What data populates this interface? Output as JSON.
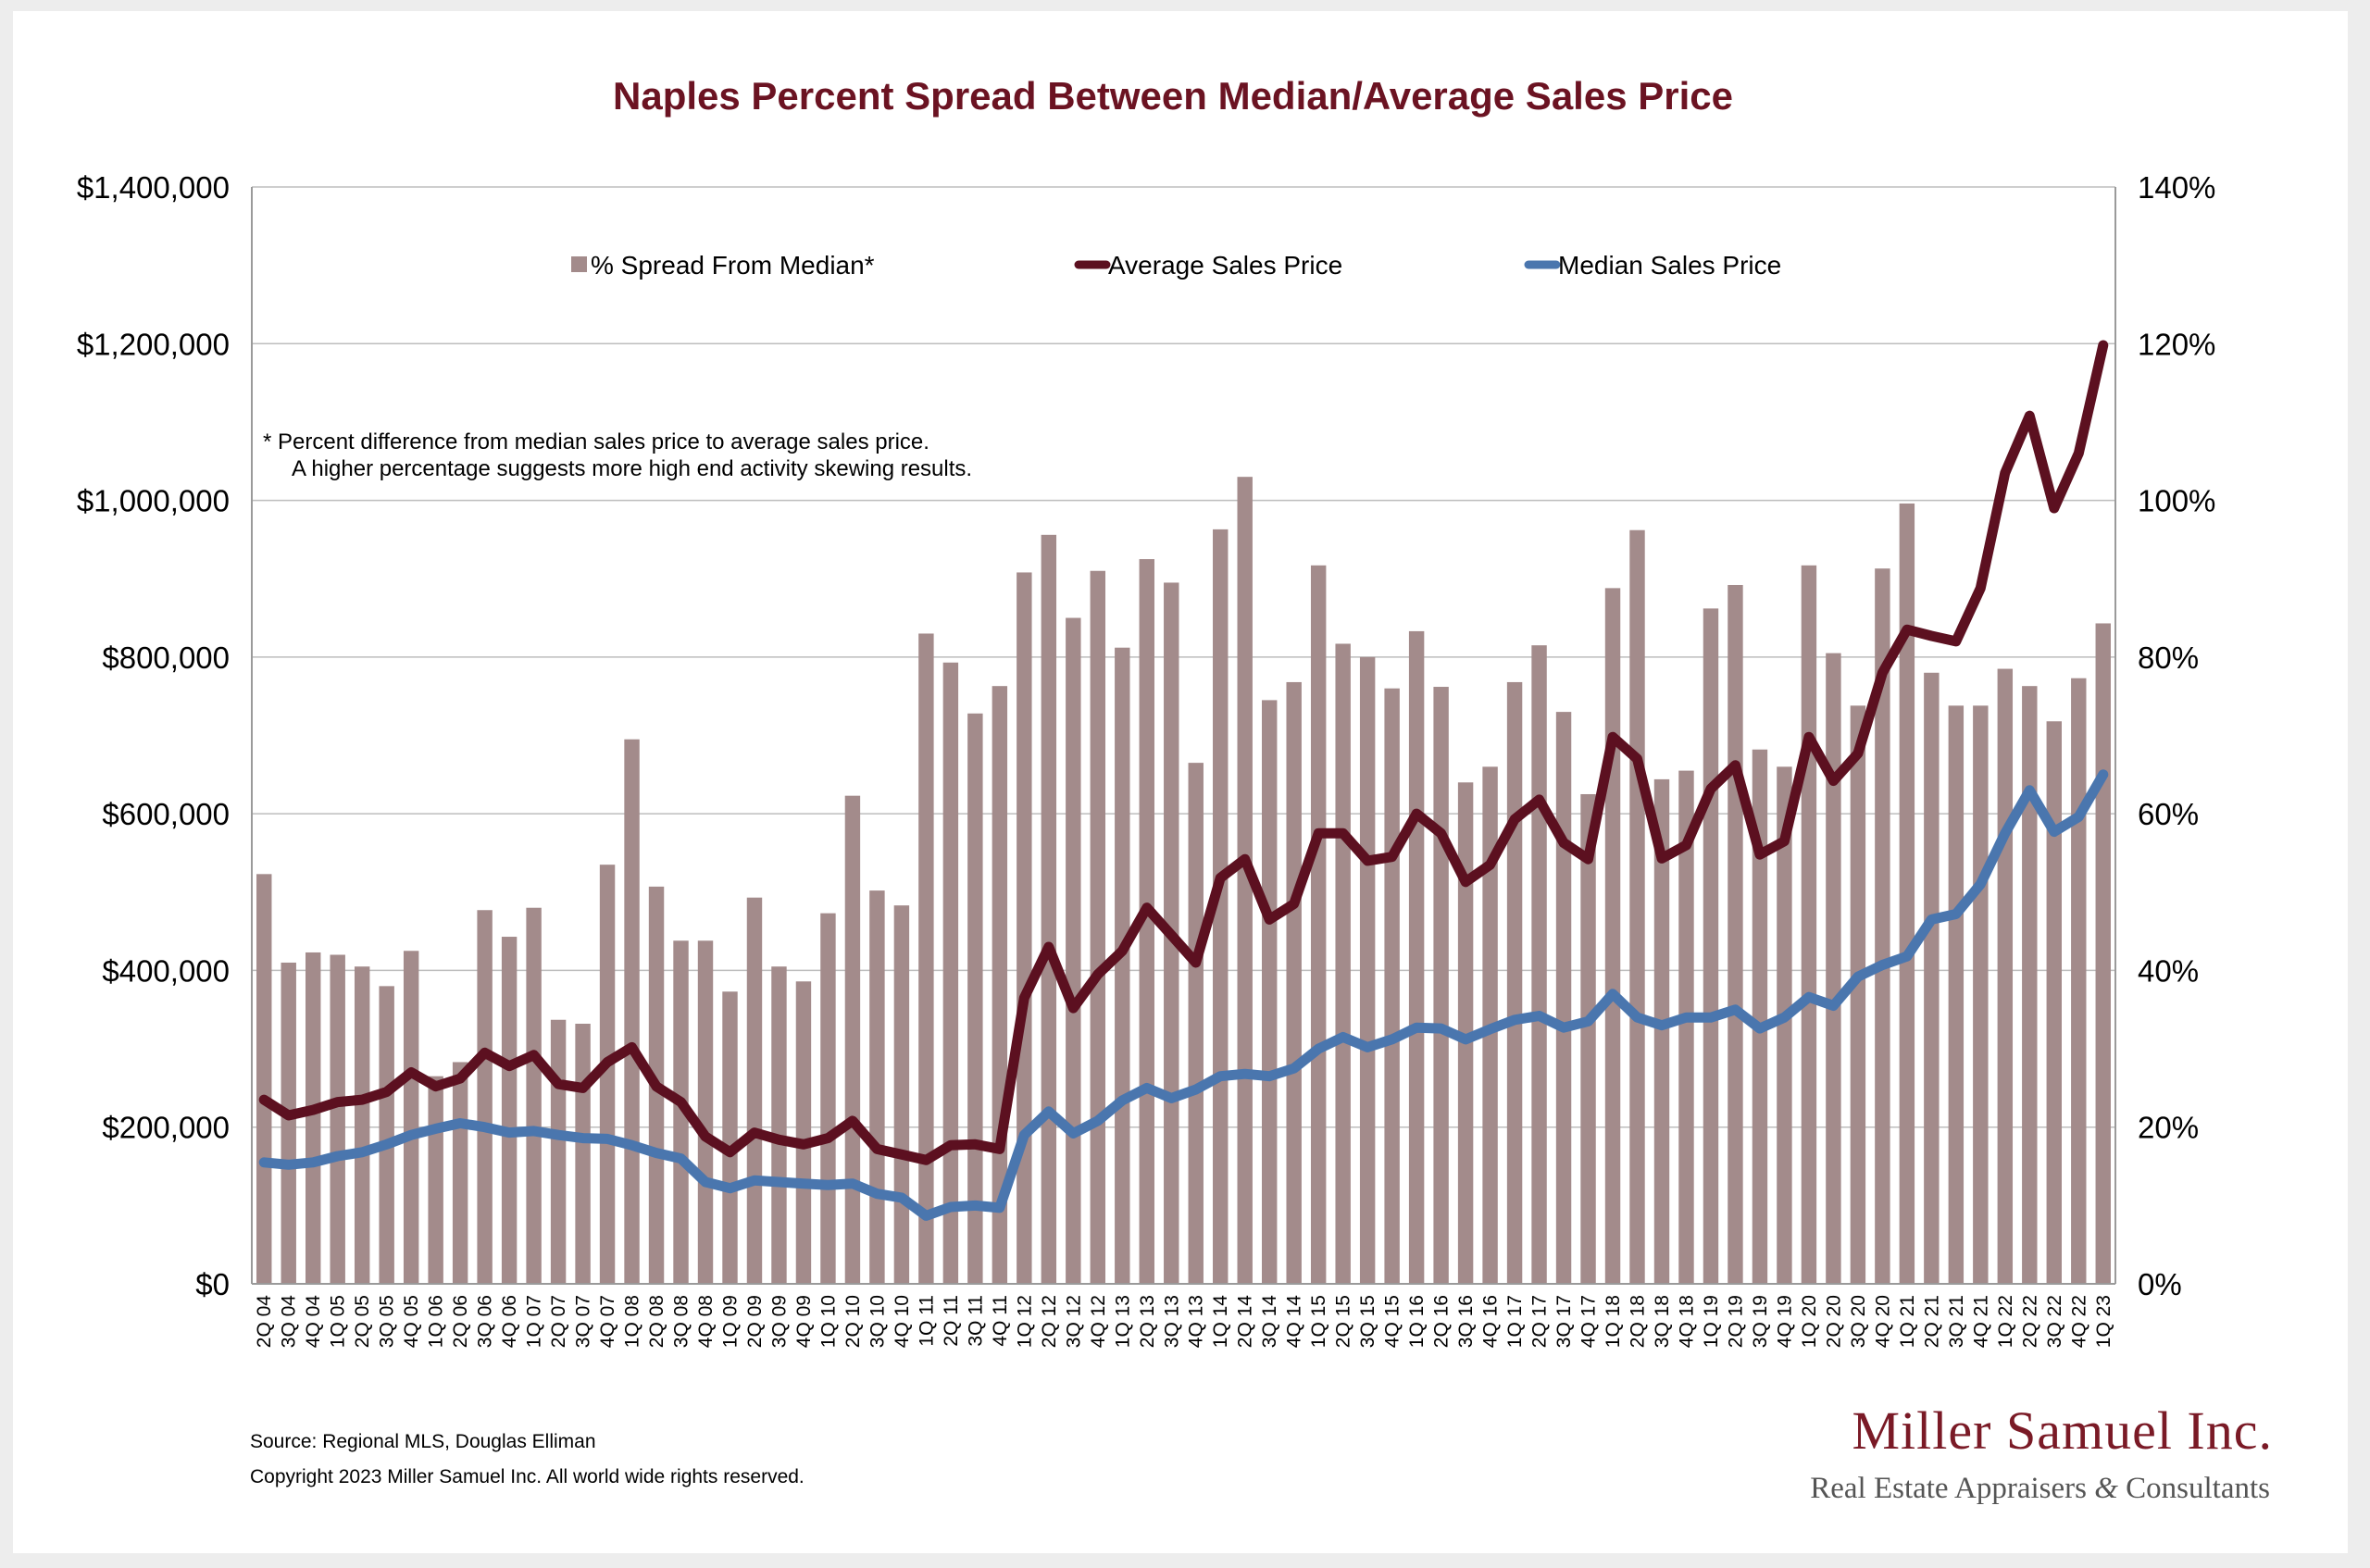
{
  "chart_data": {
    "type": "bar+line",
    "title": "Naples Percent Spread Between Median/Average Sales Price",
    "left_axis": {
      "ticks": [
        "$0",
        "$200,000",
        "$400,000",
        "$600,000",
        "$800,000",
        "$1,000,000",
        "$1,200,000",
        "$1,400,000"
      ],
      "range": [
        0,
        1400000
      ]
    },
    "right_axis": {
      "ticks": [
        "0%",
        "20%",
        "40%",
        "60%",
        "80%",
        "100%",
        "120%",
        "140%"
      ],
      "range": [
        0,
        140
      ]
    },
    "categories": [
      "2Q 04",
      "3Q 04",
      "4Q 04",
      "1Q 05",
      "2Q 05",
      "3Q 05",
      "4Q 05",
      "1Q 06",
      "2Q 06",
      "3Q 06",
      "4Q 06",
      "1Q 07",
      "2Q 07",
      "3Q 07",
      "4Q 07",
      "1Q 08",
      "2Q 08",
      "3Q 08",
      "4Q 08",
      "1Q 09",
      "2Q 09",
      "3Q 09",
      "4Q 09",
      "1Q 10",
      "2Q 10",
      "3Q 10",
      "4Q 10",
      "1Q 11",
      "2Q 11",
      "3Q 11",
      "4Q 11",
      "1Q 12",
      "2Q 12",
      "3Q 12",
      "4Q 12",
      "1Q 13",
      "2Q 13",
      "3Q 13",
      "4Q 13",
      "1Q 14",
      "2Q 14",
      "3Q 14",
      "4Q 14",
      "1Q 15",
      "2Q 15",
      "3Q 15",
      "4Q 15",
      "1Q 16",
      "2Q 16",
      "3Q 16",
      "4Q 16",
      "1Q 17",
      "2Q 17",
      "3Q 17",
      "4Q 17",
      "1Q 18",
      "2Q 18",
      "3Q 18",
      "4Q 18",
      "1Q 19",
      "2Q 19",
      "3Q 19",
      "4Q 19",
      "1Q 20",
      "2Q 20",
      "3Q 20",
      "4Q 20",
      "1Q 21",
      "2Q 21",
      "3Q 21",
      "4Q 21",
      "1Q 22",
      "2Q 22",
      "3Q 22",
      "4Q 22",
      "1Q 23"
    ],
    "series": [
      {
        "name": "% Spread From Median*",
        "kind": "bar",
        "axis": "right",
        "color": "#a38b8b",
        "values": [
          52.3,
          41,
          42.3,
          42,
          40.5,
          38,
          42.5,
          26.5,
          28.3,
          47.7,
          44.3,
          48,
          33.7,
          33.2,
          53.5,
          69.5,
          50.7,
          43.8,
          43.8,
          37.3,
          49.3,
          40.5,
          38.6,
          47.3,
          62.3,
          50.2,
          48.3,
          83,
          79.3,
          72.8,
          76.3,
          90.8,
          95.6,
          85,
          91,
          81.2,
          92.5,
          89.5,
          66.5,
          96.3,
          103,
          74.5,
          76.8,
          91.7,
          81.7,
          80,
          76,
          83.3,
          76.2,
          64,
          66,
          76.8,
          81.5,
          73,
          62.5,
          88.8,
          96.2,
          64.4,
          65.5,
          86.2,
          89.2,
          68.2,
          66,
          91.7,
          80.5,
          73.8,
          91.3,
          99.6,
          78,
          73.8,
          73.8,
          78.5,
          76.3,
          71.8,
          77.3,
          84.3
        ]
      },
      {
        "name": "Average Sales Price",
        "kind": "line",
        "axis": "left",
        "color": "#5c1020",
        "values": [
          235000,
          215000,
          222000,
          232000,
          235000,
          245000,
          270000,
          252000,
          262000,
          295000,
          278000,
          292000,
          255000,
          250000,
          283000,
          302000,
          252000,
          232000,
          188000,
          168000,
          193000,
          184000,
          178000,
          186000,
          208000,
          172000,
          165000,
          158000,
          177000,
          178000,
          172000,
          365000,
          430000,
          352000,
          395000,
          425000,
          480000,
          445000,
          410000,
          518000,
          542000,
          465000,
          485000,
          575000,
          575000,
          540000,
          545000,
          600000,
          575000,
          513000,
          535000,
          593000,
          618000,
          563000,
          542000,
          698000,
          670000,
          543000,
          560000,
          632000,
          662000,
          548000,
          565000,
          698000,
          642000,
          677000,
          780000,
          835000,
          827000,
          820000,
          888000,
          1035000,
          1108000,
          990000,
          1060000,
          1198000
        ]
      },
      {
        "name": "Median Sales Price",
        "kind": "line",
        "axis": "left",
        "color": "#4a76ae",
        "values": [
          155000,
          152000,
          155000,
          163000,
          168000,
          178000,
          190000,
          198000,
          205000,
          200000,
          193000,
          195000,
          190000,
          186000,
          185000,
          177000,
          167000,
          160000,
          130000,
          122000,
          132000,
          130000,
          128000,
          126000,
          128000,
          115000,
          110000,
          87000,
          98000,
          100000,
          97000,
          190000,
          220000,
          192000,
          208000,
          234000,
          250000,
          237000,
          248000,
          265000,
          268000,
          265000,
          275000,
          300000,
          315000,
          302000,
          312000,
          327000,
          326000,
          312000,
          325000,
          337000,
          342000,
          327000,
          335000,
          370000,
          340000,
          330000,
          340000,
          340000,
          350000,
          326000,
          340000,
          366000,
          355000,
          392000,
          407000,
          418000,
          465000,
          472000,
          510000,
          575000,
          630000,
          577000,
          596000,
          650000
        ]
      }
    ],
    "legend_position": "top",
    "grid": true
  },
  "note": {
    "line1": "*  Percent difference from median sales price to average sales price.",
    "line2": "A higher percentage suggests more high end activity skewing results."
  },
  "source": "Source: Regional MLS, Douglas Elliman",
  "copyright": "Copyright 2023 Miller Samuel Inc.  All world wide rights reserved.",
  "logo": {
    "name": "Miller Samuel Inc.",
    "tagline_a": "Real Estate Appraisers ",
    "tagline_amp": "&",
    "tagline_b": " Consultants"
  }
}
